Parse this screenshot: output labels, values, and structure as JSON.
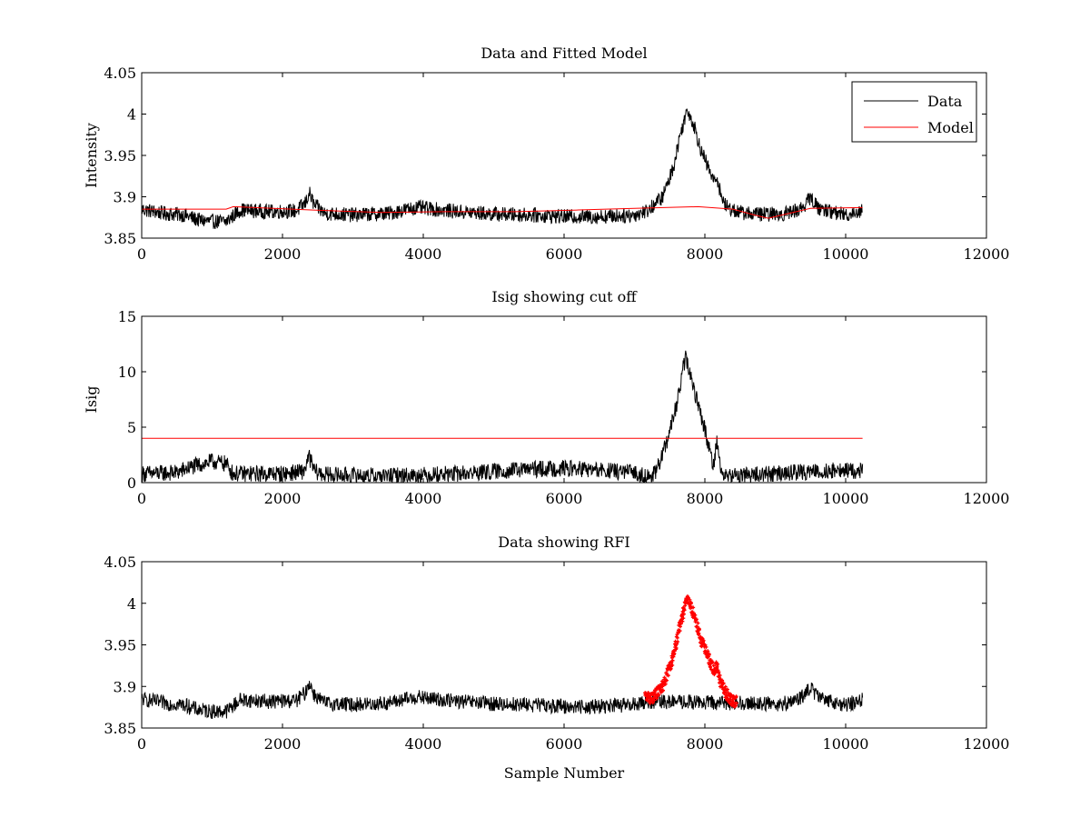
{
  "chart_data": [
    {
      "id": "top",
      "type": "line",
      "title": "Data and Fitted Model",
      "xlabel": "",
      "ylabel": "Intensity",
      "xlim": [
        0,
        12000
      ],
      "ylim": [
        3.85,
        4.05
      ],
      "xticks": [
        0,
        2000,
        4000,
        6000,
        8000,
        10000,
        12000
      ],
      "xtick_labels": [
        "0",
        "2000",
        "4000",
        "6000",
        "8000",
        "10000",
        "12000"
      ],
      "yticks": [
        3.85,
        3.9,
        3.95,
        4.0,
        4.05
      ],
      "ytick_labels": [
        "3.85",
        "3.9",
        "3.95",
        "4",
        "4.05"
      ],
      "grid": false,
      "legend": {
        "placement": "top-right",
        "entries": [
          "Data",
          "Model"
        ]
      },
      "series": [
        {
          "name": "Data",
          "color": "#000000",
          "style": "noisy-line",
          "noise": 0.009,
          "x": [
            0,
            300,
            600,
            800,
            1000,
            1200,
            1400,
            1800,
            2200,
            2330,
            2380,
            2450,
            2600,
            3000,
            3500,
            3900,
            4500,
            5000,
            5500,
            6000,
            6500,
            7000,
            7200,
            7400,
            7550,
            7650,
            7730,
            7760,
            7850,
            7950,
            8050,
            8130,
            8170,
            8220,
            8300,
            8500,
            8800,
            9100,
            9350,
            9450,
            9500,
            9600,
            9800,
            10000,
            10240
          ],
          "y": [
            3.885,
            3.88,
            3.878,
            3.872,
            3.87,
            3.87,
            3.884,
            3.882,
            3.883,
            3.893,
            3.905,
            3.89,
            3.88,
            3.878,
            3.88,
            3.887,
            3.882,
            3.879,
            3.878,
            3.876,
            3.876,
            3.878,
            3.884,
            3.9,
            3.935,
            3.975,
            4.0,
            4.005,
            3.985,
            3.955,
            3.935,
            3.918,
            3.925,
            3.905,
            3.888,
            3.881,
            3.879,
            3.879,
            3.885,
            3.893,
            3.9,
            3.887,
            3.882,
            3.878,
            3.884
          ]
        },
        {
          "name": "Model",
          "color": "#ff0000",
          "style": "line",
          "x": [
            0,
            1200,
            1300,
            2400,
            3400,
            4300,
            5300,
            6200,
            7000,
            7900,
            8400,
            8700,
            8900,
            9100,
            9500,
            10240
          ],
          "y": [
            3.885,
            3.885,
            3.888,
            3.884,
            3.881,
            3.882,
            3.882,
            3.884,
            3.886,
            3.888,
            3.885,
            3.878,
            3.874,
            3.878,
            3.886,
            3.887
          ]
        }
      ]
    },
    {
      "id": "mid",
      "type": "line",
      "title": "Isig showing cut off",
      "xlabel": "",
      "ylabel": "Isig",
      "xlim": [
        0,
        12000
      ],
      "ylim": [
        0,
        15
      ],
      "xticks": [
        0,
        2000,
        4000,
        6000,
        8000,
        10000,
        12000
      ],
      "xtick_labels": [
        "0",
        "2000",
        "4000",
        "6000",
        "8000",
        "10000",
        "12000"
      ],
      "yticks": [
        0,
        5,
        10,
        15
      ],
      "ytick_labels": [
        "0",
        "5",
        "10",
        "15"
      ],
      "grid": false,
      "series": [
        {
          "color": "#000000",
          "style": "noisy-line",
          "noise": 0.75,
          "clip_min": 0,
          "x": [
            0,
            500,
            700,
            1000,
            1200,
            1300,
            2000,
            2300,
            2380,
            2460,
            2600,
            3500,
            4500,
            5000,
            5500,
            6000,
            6500,
            7000,
            7200,
            7300,
            7450,
            7600,
            7700,
            7730,
            7800,
            7950,
            8050,
            8120,
            8170,
            8230,
            8300,
            8500,
            9000,
            9500,
            10000,
            10240
          ],
          "y": [
            0.8,
            0.9,
            1.4,
            1.9,
            1.7,
            0.8,
            0.8,
            1.0,
            2.3,
            1.0,
            0.7,
            0.6,
            0.8,
            1.0,
            1.2,
            1.3,
            1.1,
            0.9,
            0.5,
            0.8,
            3.5,
            7.0,
            10.5,
            11.3,
            9.5,
            6.0,
            3.5,
            1.5,
            3.8,
            1.0,
            0.5,
            0.7,
            0.8,
            1.0,
            1.1,
            1.0
          ]
        },
        {
          "color": "#ff0000",
          "style": "line",
          "x": [
            0,
            10240
          ],
          "y": [
            4,
            4
          ]
        }
      ]
    },
    {
      "id": "bot",
      "type": "line",
      "title": "Data showing RFI",
      "xlabel": "Sample Number",
      "ylabel": "",
      "xlim": [
        0,
        12000
      ],
      "ylim": [
        3.85,
        4.05
      ],
      "xticks": [
        0,
        2000,
        4000,
        6000,
        8000,
        10000,
        12000
      ],
      "xtick_labels": [
        "0",
        "2000",
        "4000",
        "6000",
        "8000",
        "10000",
        "12000"
      ],
      "yticks": [
        3.85,
        3.9,
        3.95,
        4.0,
        4.05
      ],
      "ytick_labels": [
        "3.85",
        "3.9",
        "3.95",
        "4",
        "4.05"
      ],
      "grid": false,
      "series": [
        {
          "color": "#000000",
          "style": "noisy-line",
          "noise": 0.009,
          "x": [
            0,
            300,
            600,
            800,
            1000,
            1200,
            1400,
            1800,
            2200,
            2330,
            2380,
            2450,
            2600,
            3000,
            3500,
            3900,
            4500,
            5000,
            5500,
            6000,
            6500,
            7000,
            7150,
            8450,
            8500,
            8800,
            9100,
            9350,
            9450,
            9500,
            9600,
            9800,
            10000,
            10240
          ],
          "y": [
            3.885,
            3.88,
            3.878,
            3.872,
            3.87,
            3.87,
            3.884,
            3.882,
            3.883,
            3.893,
            3.905,
            3.89,
            3.88,
            3.878,
            3.88,
            3.887,
            3.882,
            3.879,
            3.878,
            3.876,
            3.876,
            3.878,
            3.882,
            3.88,
            3.881,
            3.879,
            3.879,
            3.885,
            3.893,
            3.9,
            3.887,
            3.882,
            3.878,
            3.884
          ]
        },
        {
          "color": "#ff0000",
          "style": "markers",
          "noise": 0.007,
          "x": [
            7150,
            7250,
            7400,
            7550,
            7650,
            7730,
            7760,
            7850,
            7950,
            8050,
            8130,
            8170,
            8220,
            8300,
            8400,
            8450
          ],
          "y": [
            3.888,
            3.886,
            3.9,
            3.935,
            3.975,
            4.0,
            4.005,
            3.985,
            3.955,
            3.935,
            3.918,
            3.925,
            3.905,
            3.892,
            3.882,
            3.882
          ]
        }
      ]
    }
  ]
}
